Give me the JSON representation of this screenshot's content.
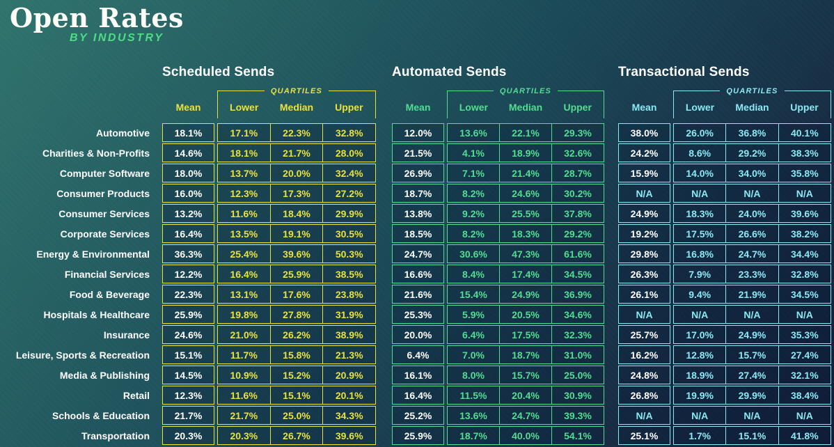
{
  "header": {
    "title": "Open Rates",
    "subtitle": "BY INDUSTRY"
  },
  "columns": {
    "mean": "Mean",
    "quartiles": "QUARTILES",
    "lower": "Lower",
    "median": "Median",
    "upper": "Upper"
  },
  "na_label": "N/A",
  "colors": {
    "background_top_left": "#30746d",
    "background_bottom_right": "#131b38",
    "scheduled_accent": "#e9e23e",
    "automated_accent": "#52dd92",
    "transactional_accent": "#8be9f4",
    "subtitle_green": "#4fdc87",
    "text": "#ffffff",
    "cell_fill": "rgba(9,30,56,0.34)"
  },
  "chart_data": {
    "type": "table",
    "title": "Open Rates",
    "subtitle": "BY INDUSTRY",
    "value_unit": "percent",
    "industries": [
      "Automotive",
      "Charities & Non-Profits",
      "Computer Software",
      "Consumer Products",
      "Consumer Services",
      "Corporate Services",
      "Energy & Environmental",
      "Financial Services",
      "Food & Beverage",
      "Hospitals & Healthcare",
      "Insurance",
      "Leisure, Sports & Recreation",
      "Media & Publishing",
      "Retail",
      "Schools & Education",
      "Transportation"
    ],
    "tables": [
      {
        "name": "Scheduled Sends",
        "accent": "#e9e23e",
        "columns": [
          "Mean",
          "Lower",
          "Median",
          "Upper"
        ],
        "rows": [
          [
            18.1,
            17.1,
            22.3,
            32.8
          ],
          [
            14.6,
            18.1,
            21.7,
            28.0
          ],
          [
            18.0,
            13.7,
            20.0,
            32.4
          ],
          [
            16.0,
            12.3,
            17.3,
            27.2
          ],
          [
            13.2,
            11.6,
            18.4,
            29.9
          ],
          [
            16.4,
            13.5,
            19.1,
            30.5
          ],
          [
            36.3,
            25.4,
            39.6,
            50.3
          ],
          [
            12.2,
            16.4,
            25.9,
            38.5
          ],
          [
            22.3,
            13.1,
            17.6,
            23.8
          ],
          [
            25.9,
            19.8,
            27.8,
            31.9
          ],
          [
            24.6,
            21.0,
            26.2,
            38.9
          ],
          [
            15.1,
            11.7,
            15.8,
            21.3
          ],
          [
            14.5,
            10.9,
            15.2,
            20.9
          ],
          [
            12.3,
            11.6,
            15.1,
            20.1
          ],
          [
            21.7,
            21.7,
            25.0,
            34.3
          ],
          [
            20.3,
            20.3,
            26.7,
            39.6
          ]
        ]
      },
      {
        "name": "Automated Sends",
        "accent": "#52dd92",
        "columns": [
          "Mean",
          "Lower",
          "Median",
          "Upper"
        ],
        "rows": [
          [
            12.0,
            13.6,
            22.1,
            29.3
          ],
          [
            21.5,
            4.1,
            18.9,
            32.6
          ],
          [
            26.9,
            7.1,
            21.4,
            28.7
          ],
          [
            18.7,
            8.2,
            24.6,
            30.2
          ],
          [
            13.8,
            9.2,
            25.5,
            37.8
          ],
          [
            18.5,
            8.2,
            18.3,
            29.2
          ],
          [
            24.7,
            30.6,
            47.3,
            61.6
          ],
          [
            16.6,
            8.4,
            17.4,
            34.5
          ],
          [
            21.6,
            15.4,
            24.9,
            36.9
          ],
          [
            25.3,
            5.9,
            20.5,
            34.6
          ],
          [
            20.0,
            6.4,
            17.5,
            32.3
          ],
          [
            6.4,
            7.0,
            18.7,
            31.0
          ],
          [
            16.1,
            8.0,
            15.7,
            25.0
          ],
          [
            16.4,
            11.5,
            20.4,
            30.9
          ],
          [
            25.2,
            13.6,
            24.7,
            39.3
          ],
          [
            25.9,
            18.7,
            40.0,
            54.1
          ]
        ]
      },
      {
        "name": "Transactional Sends",
        "accent": "#8be9f4",
        "columns": [
          "Mean",
          "Lower",
          "Median",
          "Upper"
        ],
        "rows": [
          [
            38.0,
            26.0,
            36.8,
            40.1
          ],
          [
            24.2,
            8.6,
            29.2,
            38.3
          ],
          [
            15.9,
            14.0,
            34.0,
            35.8
          ],
          [
            null,
            null,
            null,
            null
          ],
          [
            24.9,
            18.3,
            24.0,
            39.6
          ],
          [
            19.2,
            17.5,
            26.6,
            38.2
          ],
          [
            29.8,
            16.8,
            24.7,
            34.4
          ],
          [
            26.3,
            7.9,
            23.3,
            32.8
          ],
          [
            26.1,
            9.4,
            21.9,
            34.5
          ],
          [
            null,
            null,
            null,
            null
          ],
          [
            25.7,
            17.0,
            24.9,
            35.3
          ],
          [
            16.2,
            12.8,
            15.7,
            27.4
          ],
          [
            24.8,
            18.9,
            27.4,
            32.1
          ],
          [
            26.8,
            19.9,
            29.9,
            38.4
          ],
          [
            null,
            null,
            null,
            null
          ],
          [
            25.1,
            1.7,
            15.1,
            41.8
          ]
        ]
      }
    ]
  }
}
